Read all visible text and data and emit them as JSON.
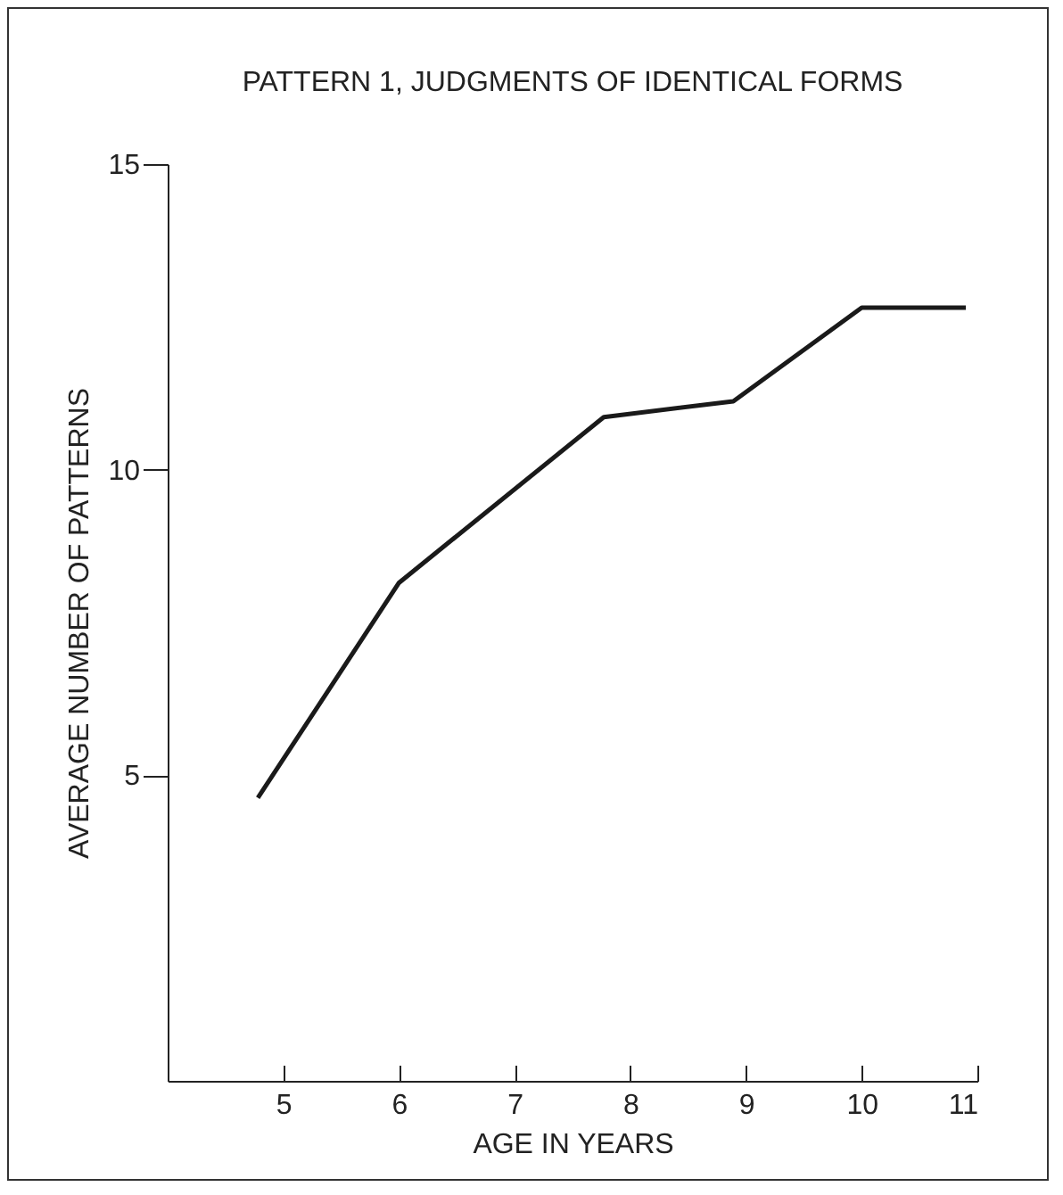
{
  "chart_data": {
    "type": "line",
    "title": "PATTERN 1, JUDGMENTS OF IDENTICAL FORMS",
    "xlabel": "AGE IN YEARS",
    "ylabel": "AVERAGE NUMBER OF PATTERNS",
    "x": [
      4.78,
      6,
      7.77,
      8.89,
      10,
      10.9
    ],
    "series": [
      {
        "color": "#1a1a1a",
        "values": [
          4.63,
          8.15,
          10.86,
          11.12,
          12.65,
          12.65
        ]
      }
    ],
    "xlim": [
      4,
      11
    ],
    "xticks": [
      5,
      6,
      7,
      8,
      9,
      10,
      11
    ],
    "ylim": [
      0,
      15
    ],
    "yticks": [
      5,
      10,
      15
    ],
    "grid": false,
    "marker": "none",
    "line_style": "solid"
  }
}
